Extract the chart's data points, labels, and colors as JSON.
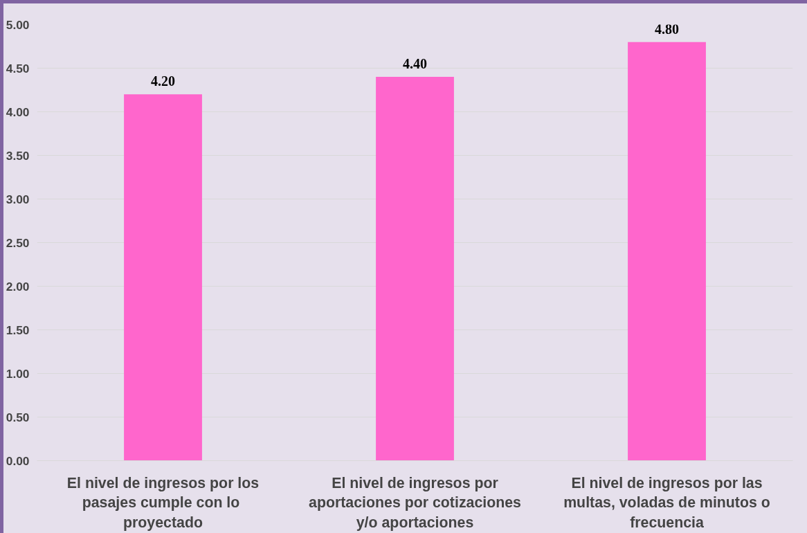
{
  "chart_data": {
    "type": "bar",
    "categories": [
      "El nivel de ingresos por los pasajes  cumple con lo proyectado",
      "El nivel de ingresos por aportaciones por cotizaciones y/o aportaciones",
      "El nivel de ingresos por las multas, voladas de minutos o frecuencia"
    ],
    "values": [
      4.2,
      4.4,
      4.8
    ],
    "value_labels": [
      "4.20",
      "4.40",
      "4.80"
    ],
    "color": "#ff66cc",
    "ylim": [
      0,
      5
    ],
    "yticks": [
      {
        "value": 0,
        "label": "0.00"
      },
      {
        "value": 0.5,
        "label": "0.50"
      },
      {
        "value": 1,
        "label": "1.00"
      },
      {
        "value": 1.5,
        "label": "1.50"
      },
      {
        "value": 2,
        "label": "2.00"
      },
      {
        "value": 2.5,
        "label": "2.50"
      },
      {
        "value": 3,
        "label": "3.00"
      },
      {
        "value": 3.5,
        "label": "3.50"
      },
      {
        "value": 4,
        "label": "4.00"
      },
      {
        "value": 4.5,
        "label": "4.50"
      },
      {
        "value": 5,
        "label": "5.00"
      }
    ],
    "grid": "y"
  }
}
